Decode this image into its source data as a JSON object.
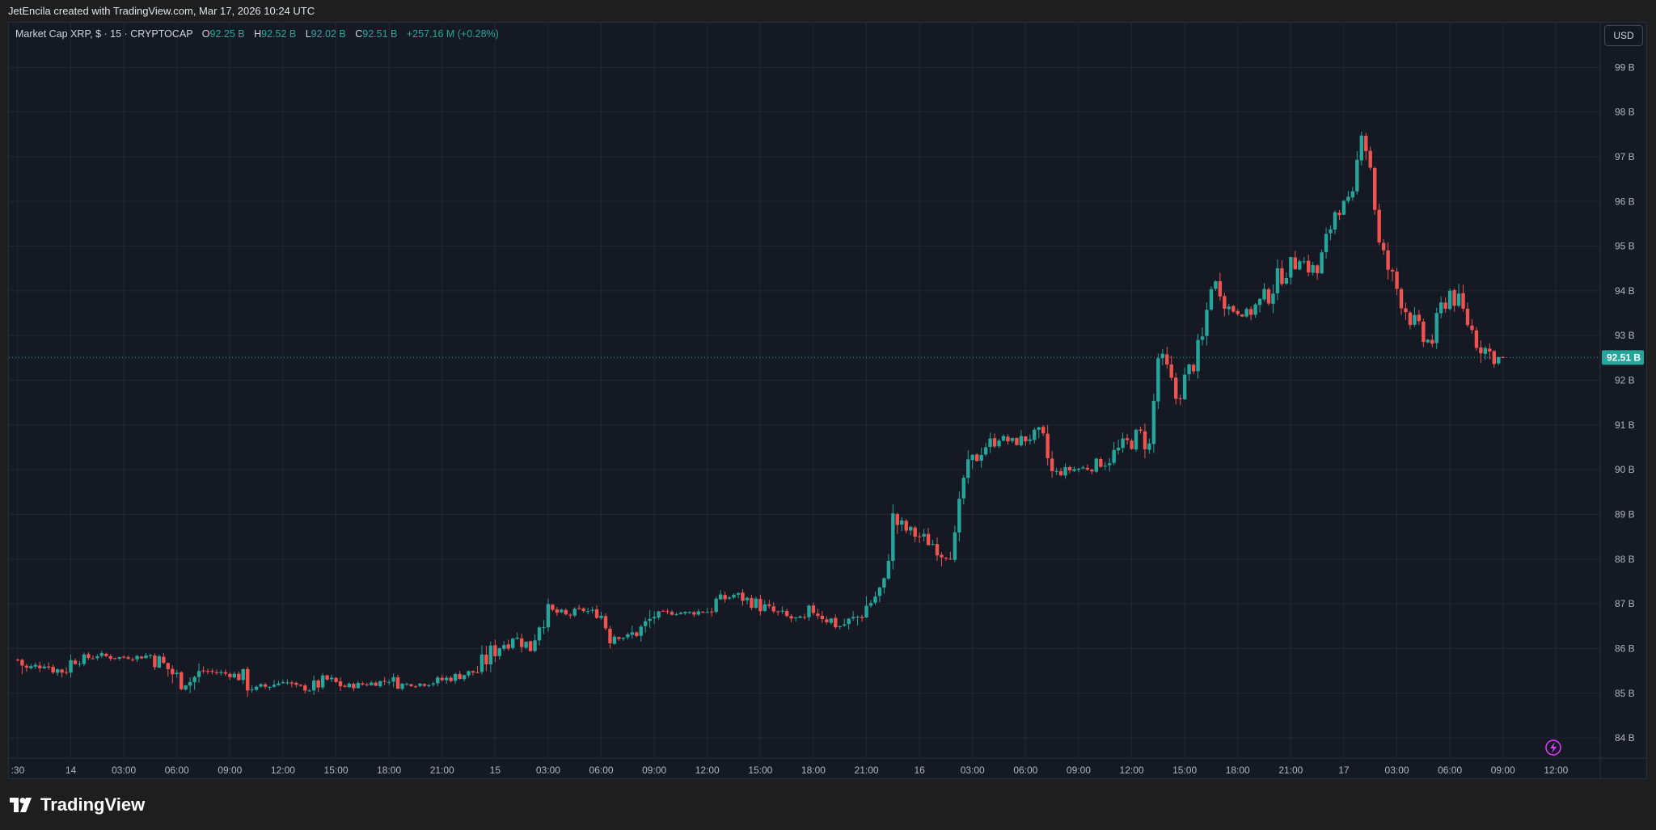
{
  "header": {
    "attribution": "JetEncila created with TradingView.com, Mar 17, 2026 10:24 UTC"
  },
  "legend": {
    "symbol": "Market Cap XRP, $ · 15 · CRYPTOCAP",
    "open_label": "O",
    "open_value": "92.25 B",
    "high_label": "H",
    "high_value": "92.52 B",
    "low_label": "L",
    "low_value": "92.02 B",
    "close_label": "C",
    "close_value": "92.51 B",
    "change": "+257.16 M (+0.28%)"
  },
  "currency_button": "USD",
  "last_price_label": "92.51 B",
  "footer": {
    "brand": "TradingView"
  },
  "colors": {
    "up": "#26a69a",
    "down": "#ef5350",
    "background": "#151924",
    "grid": "#232733",
    "axis_text": "#b2b5be"
  },
  "chart_data": {
    "type": "candlestick",
    "interval": "15",
    "y_unit": "B USD",
    "ylim": [
      83.55,
      100.0
    ],
    "yticks": [
      84,
      85,
      86,
      87,
      88,
      89,
      90,
      91,
      92,
      93,
      94,
      95,
      96,
      97,
      98,
      99
    ],
    "ytick_labels": [
      "84 B",
      "85 B",
      "86 B",
      "87 B",
      "88 B",
      "89 B",
      "90 B",
      "91 B",
      "92 B",
      "93 B",
      "94 B",
      "95 B",
      "96 B",
      "97 B",
      "98 B",
      "99 B"
    ],
    "xticks": [
      {
        "label": ":30",
        "hour": 0.5
      },
      {
        "label": "14",
        "hour": 3.5
      },
      {
        "label": "03:00",
        "hour": 6.5
      },
      {
        "label": "06:00",
        "hour": 9.5
      },
      {
        "label": "09:00",
        "hour": 12.5
      },
      {
        "label": "12:00",
        "hour": 15.5
      },
      {
        "label": "15:00",
        "hour": 18.5
      },
      {
        "label": "18:00",
        "hour": 21.5
      },
      {
        "label": "21:00",
        "hour": 24.5
      },
      {
        "label": "15",
        "hour": 27.5
      },
      {
        "label": "03:00",
        "hour": 30.5
      },
      {
        "label": "06:00",
        "hour": 33.5
      },
      {
        "label": "09:00",
        "hour": 36.5
      },
      {
        "label": "12:00",
        "hour": 39.5
      },
      {
        "label": "15:00",
        "hour": 42.5
      },
      {
        "label": "18:00",
        "hour": 45.5
      },
      {
        "label": "21:00",
        "hour": 48.5
      },
      {
        "label": "16",
        "hour": 51.5
      },
      {
        "label": "03:00",
        "hour": 54.5
      },
      {
        "label": "06:00",
        "hour": 57.5
      },
      {
        "label": "09:00",
        "hour": 60.5
      },
      {
        "label": "12:00",
        "hour": 63.5
      },
      {
        "label": "15:00",
        "hour": 66.5
      },
      {
        "label": "18:00",
        "hour": 69.5
      },
      {
        "label": "21:00",
        "hour": 72.5
      },
      {
        "label": "17",
        "hour": 75.5
      },
      {
        "label": "03:00",
        "hour": 78.5
      },
      {
        "label": "06:00",
        "hour": 81.5
      },
      {
        "label": "09:00",
        "hour": 84.5
      },
      {
        "label": "12:00",
        "hour": 87.5
      }
    ],
    "last_price": 92.51,
    "close_anchors": [
      [
        0.5,
        85.75
      ],
      [
        1.0,
        85.55
      ],
      [
        1.5,
        85.6
      ],
      [
        2.0,
        85.65
      ],
      [
        2.5,
        85.55
      ],
      [
        3.0,
        85.5
      ],
      [
        3.5,
        85.7
      ],
      [
        4.0,
        85.75
      ],
      [
        5.0,
        85.85
      ],
      [
        6.0,
        85.8
      ],
      [
        7.0,
        85.8
      ],
      [
        8.0,
        85.85
      ],
      [
        8.5,
        85.7
      ],
      [
        9.0,
        85.55
      ],
      [
        9.5,
        85.35
      ],
      [
        10.0,
        85.2
      ],
      [
        10.5,
        85.35
      ],
      [
        11.0,
        85.5
      ],
      [
        12.0,
        85.45
      ],
      [
        13.0,
        85.4
      ],
      [
        13.5,
        85.2
      ],
      [
        14.0,
        85.1
      ],
      [
        15.0,
        85.2
      ],
      [
        15.5,
        85.3
      ],
      [
        16.0,
        85.15
      ],
      [
        17.0,
        85.1
      ],
      [
        18.0,
        85.3
      ],
      [
        19.0,
        85.15
      ],
      [
        20.0,
        85.2
      ],
      [
        21.0,
        85.25
      ],
      [
        21.5,
        85.3
      ],
      [
        22.0,
        85.2
      ],
      [
        23.0,
        85.2
      ],
      [
        24.0,
        85.25
      ],
      [
        25.0,
        85.35
      ],
      [
        26.0,
        85.45
      ],
      [
        26.5,
        85.5
      ],
      [
        27.5,
        86.0
      ],
      [
        28.5,
        86.25
      ],
      [
        29.5,
        86.05
      ],
      [
        30.0,
        86.6
      ],
      [
        30.5,
        86.85
      ],
      [
        31.5,
        86.75
      ],
      [
        32.5,
        86.85
      ],
      [
        33.5,
        86.75
      ],
      [
        34.0,
        86.3
      ],
      [
        35.0,
        86.25
      ],
      [
        36.0,
        86.5
      ],
      [
        36.5,
        86.75
      ],
      [
        37.5,
        86.8
      ],
      [
        38.5,
        86.8
      ],
      [
        39.5,
        86.85
      ],
      [
        40.0,
        87.05
      ],
      [
        41.0,
        87.2
      ],
      [
        42.0,
        87.05
      ],
      [
        43.0,
        86.85
      ],
      [
        44.0,
        86.7
      ],
      [
        45.0,
        86.6
      ],
      [
        45.5,
        86.85
      ],
      [
        46.0,
        86.75
      ],
      [
        47.0,
        86.5
      ],
      [
        48.0,
        86.7
      ],
      [
        48.5,
        86.95
      ],
      [
        49.5,
        87.4
      ],
      [
        50.0,
        88.9
      ],
      [
        50.5,
        88.7
      ],
      [
        51.5,
        88.5
      ],
      [
        52.5,
        88.3
      ],
      [
        53.0,
        88.1
      ],
      [
        53.5,
        88.4
      ],
      [
        54.0,
        89.8
      ],
      [
        55.0,
        90.5
      ],
      [
        56.0,
        90.7
      ],
      [
        57.0,
        90.6
      ],
      [
        58.0,
        90.8
      ],
      [
        58.5,
        90.6
      ],
      [
        59.0,
        89.9
      ],
      [
        60.0,
        90.0
      ],
      [
        61.0,
        90.05
      ],
      [
        62.0,
        90.2
      ],
      [
        63.0,
        90.5
      ],
      [
        64.0,
        90.8
      ],
      [
        64.5,
        90.5
      ],
      [
        65.0,
        92.5
      ],
      [
        65.5,
        92.2
      ],
      [
        66.0,
        91.6
      ],
      [
        67.0,
        92.4
      ],
      [
        67.5,
        92.9
      ],
      [
        68.0,
        94.2
      ],
      [
        68.5,
        94.1
      ],
      [
        69.0,
        93.6
      ],
      [
        70.0,
        93.5
      ],
      [
        71.0,
        93.8
      ],
      [
        72.0,
        94.4
      ],
      [
        73.0,
        94.7
      ],
      [
        74.0,
        94.4
      ],
      [
        75.0,
        95.8
      ],
      [
        76.0,
        96.0
      ],
      [
        76.5,
        97.7
      ],
      [
        77.0,
        96.8
      ],
      [
        77.5,
        95.0
      ],
      [
        78.0,
        94.5
      ],
      [
        79.0,
        93.6
      ],
      [
        80.0,
        92.9
      ],
      [
        80.5,
        92.9
      ],
      [
        81.0,
        93.6
      ],
      [
        81.5,
        94.0
      ],
      [
        82.0,
        93.7
      ],
      [
        83.0,
        92.9
      ],
      [
        84.0,
        92.5
      ],
      [
        84.5,
        92.51
      ]
    ]
  }
}
